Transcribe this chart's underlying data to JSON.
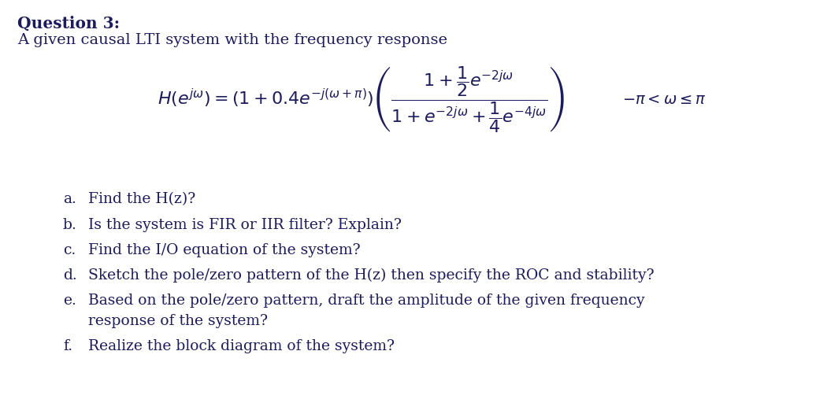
{
  "bg_color": "#ffffff",
  "text_color": "#1c1c5c",
  "title": "Question 3:",
  "subtitle": "A given causal LTI system with the frequency response",
  "formula_left": "$H(e^{j\\omega}) = \\left(1+0.4e^{-j(\\omega+\\pi)}\\right)$",
  "formula_frac": "$\\dfrac{1+\\dfrac{1}{2}e^{-2j\\omega}}{1+e^{-2j\\omega}+\\dfrac{1}{4}e^{-4j\\omega}}$",
  "constraint": "$-\\pi < \\omega \\leq \\pi$",
  "items": [
    [
      "a.",
      "Find the H(z)?"
    ],
    [
      "b.",
      "Is the system is FIR or IIR filter? Explain?"
    ],
    [
      "c.",
      "Find the I/O equation of the system?"
    ],
    [
      "d.",
      "Sketch the pole/zero pattern of the H(z) then specify the ROC and stability?"
    ],
    [
      "e.",
      "Based on the pole/zero pattern, draft the amplitude of the given frequency"
    ],
    [
      "",
      "response of the system?"
    ],
    [
      "f.",
      "Realize the block diagram of the system?"
    ]
  ],
  "figsize": [
    10.5,
    5.07
  ],
  "dpi": 100,
  "title_fontsize": 14.5,
  "subtitle_fontsize": 14,
  "formula_fontsize": 14,
  "list_fontsize": 13.5
}
